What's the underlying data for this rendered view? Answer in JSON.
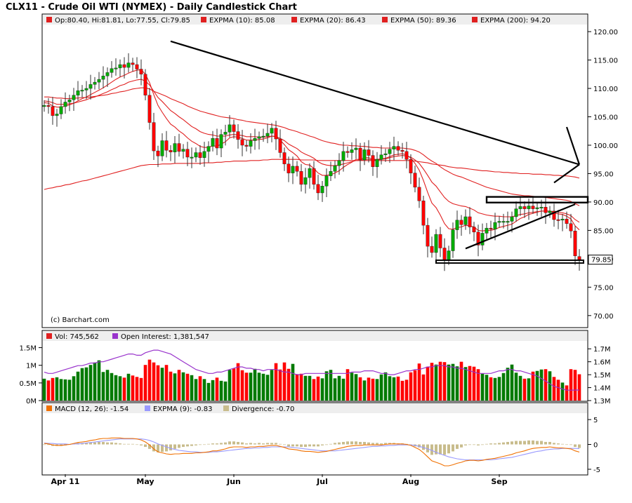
{
  "title": "CLX11 - Crude Oil WTI (NYMEX) - Daily Candlestick Chart",
  "colors": {
    "up": "#00aa00",
    "down": "#ff0000",
    "ema": "#e02020",
    "oi": "#9933cc",
    "macd": "#f07000",
    "signal": "#9999ff",
    "divergence": "#c8bc8c"
  },
  "price_legend": {
    "ohlc": "Op:80.40, Hi:81.81, Lo:77.55, Cl:79.85",
    "ema10": "EXPMA (10): 85.08",
    "ema20": "EXPMA (20): 86.43",
    "ema50": "EXPMA (50): 89.36",
    "ema200": "EXPMA (200): 94.20"
  },
  "volume_legend": {
    "vol": "Vol: 745,562",
    "oi": "Open Interest: 1,381,547"
  },
  "macd_legend": {
    "macd": "MACD (12, 26): -1.54",
    "signal": "EXPMA (9): -0.83",
    "divergence": "Divergence: -0.70"
  },
  "watermark": "(c) Barchart.com",
  "last_price_label": "79.85",
  "chart_data": {
    "type": "candlestick",
    "price_axis": {
      "range": [
        68,
        121
      ],
      "ticks": [
        "120.00",
        "115.00",
        "110.00",
        "105.00",
        "100.00",
        "95.00",
        "90.00",
        "85.00",
        "80.00",
        "75.00",
        "70.00"
      ]
    },
    "volume_axis": {
      "left_range": [
        0,
        1650000
      ],
      "left_ticks": [
        "1.5M",
        "1M",
        "0.5M",
        "0M"
      ],
      "right_range": [
        1300000,
        1750000
      ],
      "right_ticks": [
        "1.7M",
        "1.6M",
        "1.5M",
        "1.4M",
        "1.3M"
      ]
    },
    "macd_axis": {
      "range": [
        -6,
        6
      ],
      "ticks": [
        "5",
        "0",
        "-5"
      ]
    },
    "x_labels": [
      {
        "label": "Apr 11",
        "bar": 5
      },
      {
        "label": "May",
        "bar": 24
      },
      {
        "label": "Jun",
        "bar": 45
      },
      {
        "label": "Jul",
        "bar": 66
      },
      {
        "label": "Aug",
        "bar": 87
      },
      {
        "label": "Sep",
        "bar": 108
      }
    ],
    "bar_count": 128,
    "closes": [
      107.0,
      106.8,
      105.2,
      105.5,
      106.8,
      107.6,
      108.0,
      108.8,
      109.6,
      109.7,
      110.0,
      110.7,
      111.1,
      111.6,
      112.2,
      112.8,
      113.5,
      113.6,
      114.2,
      113.7,
      114.5,
      114.2,
      113.4,
      112.5,
      108.8,
      104.0,
      99.0,
      98.1,
      100.8,
      99.1,
      98.8,
      100.3,
      98.9,
      99.3,
      97.9,
      97.9,
      98.7,
      97.8,
      98.9,
      99.8,
      101.2,
      99.5,
      101.9,
      102.3,
      103.6,
      102.4,
      101.0,
      100.0,
      99.8,
      100.8,
      101.2,
      101.5,
      101.6,
      102.1,
      103.0,
      101.1,
      98.7,
      96.7,
      95.1,
      96.3,
      95.4,
      93.1,
      94.3,
      95.9,
      93.1,
      91.6,
      92.8,
      94.6,
      95.4,
      96.4,
      97.3,
      98.9,
      98.7,
      99.2,
      99.5,
      97.4,
      99.2,
      98.2,
      96.2,
      97.5,
      98.3,
      98.5,
      99.3,
      99.8,
      99.1,
      98.9,
      97.5,
      95.1,
      92.6,
      90.2,
      85.9,
      82.2,
      81.1,
      84.3,
      81.9,
      79.8,
      81.4,
      85.1,
      86.8,
      86.0,
      87.4,
      85.6,
      84.7,
      82.4,
      84.5,
      85.4,
      85.2,
      86.4,
      86.6,
      86.6,
      86.6,
      87.4,
      88.8,
      89.2,
      88.8,
      89.3,
      88.8,
      89.0,
      89.1,
      88.1,
      88.4,
      86.9,
      86.8,
      87.0,
      86.2,
      84.9,
      80.5,
      79.85
    ],
    "opens": [
      106.8,
      107.0,
      106.8,
      105.2,
      105.5,
      106.8,
      107.6,
      108.0,
      108.8,
      109.6,
      109.7,
      110.0,
      110.7,
      111.1,
      111.6,
      112.2,
      112.8,
      113.5,
      113.6,
      114.2,
      113.7,
      114.5,
      114.2,
      113.4,
      112.5,
      108.8,
      104.0,
      99.0,
      98.1,
      100.8,
      99.1,
      98.8,
      100.3,
      98.9,
      99.3,
      97.9,
      97.9,
      98.7,
      97.8,
      98.9,
      99.8,
      101.2,
      99.5,
      101.9,
      102.3,
      103.6,
      102.4,
      101.0,
      100.0,
      99.8,
      100.8,
      101.2,
      101.5,
      101.6,
      102.1,
      103.0,
      101.1,
      98.7,
      96.7,
      95.1,
      96.3,
      95.4,
      93.1,
      94.3,
      95.9,
      93.1,
      91.6,
      92.8,
      94.6,
      95.4,
      96.4,
      97.3,
      98.9,
      98.7,
      99.2,
      99.5,
      97.4,
      99.2,
      98.2,
      96.2,
      97.5,
      98.3,
      98.5,
      99.3,
      99.8,
      99.1,
      98.9,
      97.5,
      95.1,
      92.6,
      90.2,
      85.9,
      82.2,
      81.1,
      84.3,
      81.9,
      79.8,
      81.4,
      85.1,
      86.8,
      86.0,
      87.4,
      85.6,
      84.7,
      82.4,
      84.5,
      85.4,
      85.2,
      86.4,
      86.6,
      86.6,
      86.6,
      87.4,
      88.8,
      89.2,
      88.8,
      89.3,
      88.8,
      89.0,
      89.1,
      88.1,
      88.4,
      86.9,
      86.8,
      87.0,
      86.2,
      84.9,
      80.4
    ],
    "ema10": [
      107.5,
      107.4,
      106.9,
      106.7,
      106.7,
      106.9,
      107.1,
      107.4,
      107.8,
      108.2,
      108.5,
      108.9,
      109.3,
      109.7,
      110.1,
      110.6,
      111.1,
      111.6,
      112.0,
      112.3,
      112.7,
      113.0,
      113.2,
      113.3,
      112.5,
      111.0,
      108.9,
      107.0,
      105.8,
      104.7,
      103.7,
      103.2,
      102.5,
      102.0,
      101.3,
      100.7,
      100.3,
      99.8,
      99.6,
      99.6,
      99.9,
      99.8,
      100.2,
      100.6,
      101.3,
      101.5,
      101.4,
      101.2,
      100.9,
      100.9,
      100.9,
      101.0,
      101.1,
      101.3,
      101.6,
      101.5,
      100.9,
      100.1,
      99.2,
      98.7,
      98.1,
      97.1,
      96.6,
      96.5,
      95.9,
      95.1,
      94.7,
      94.7,
      94.8,
      95.1,
      95.5,
      96.1,
      96.6,
      97.0,
      97.5,
      97.5,
      97.8,
      97.8,
      97.5,
      97.5,
      97.6,
      97.7,
      98.0,
      98.3,
      98.4,
      98.5,
      98.3,
      97.7,
      96.8,
      95.6,
      93.8,
      91.7,
      89.8,
      89.0,
      87.7,
      86.2,
      85.3,
      85.2,
      85.5,
      85.6,
      85.9,
      85.8,
      85.6,
      85.0,
      84.9,
      85.0,
      85.0,
      85.2,
      85.5,
      85.7,
      85.9,
      86.1,
      86.6,
      87.1,
      87.4,
      87.8,
      88.0,
      88.2,
      88.4,
      88.4,
      88.4,
      88.1,
      87.9,
      87.8,
      87.5,
      87.0,
      85.8,
      85.08
    ],
    "ema20": [
      107.8,
      107.7,
      107.5,
      107.2,
      107.2,
      107.2,
      107.3,
      107.4,
      107.6,
      107.8,
      108.0,
      108.3,
      108.5,
      108.8,
      109.1,
      109.4,
      109.8,
      110.1,
      110.5,
      110.7,
      111.1,
      111.3,
      111.5,
      111.6,
      111.3,
      110.6,
      109.5,
      108.4,
      107.7,
      106.9,
      106.1,
      105.6,
      105.0,
      104.5,
      103.9,
      103.3,
      102.9,
      102.4,
      102.1,
      101.9,
      101.8,
      101.6,
      101.6,
      101.6,
      101.8,
      101.9,
      101.8,
      101.7,
      101.5,
      101.5,
      101.5,
      101.4,
      101.4,
      101.5,
      101.6,
      101.5,
      101.2,
      100.8,
      100.2,
      99.8,
      99.4,
      98.8,
      98.4,
      98.1,
      97.7,
      97.1,
      96.7,
      96.5,
      96.4,
      96.4,
      96.5,
      96.7,
      96.9,
      97.1,
      97.3,
      97.3,
      97.5,
      97.5,
      97.4,
      97.4,
      97.5,
      97.6,
      97.8,
      98.0,
      98.1,
      98.2,
      98.1,
      97.9,
      97.4,
      96.8,
      95.8,
      94.7,
      93.5,
      92.8,
      91.8,
      90.8,
      90.1,
      89.7,
      89.5,
      89.3,
      89.2,
      88.9,
      88.6,
      88.1,
      87.9,
      87.7,
      87.6,
      87.5,
      87.5,
      87.4,
      87.4,
      87.4,
      87.6,
      87.8,
      87.9,
      88.1,
      88.2,
      88.3,
      88.4,
      88.4,
      88.4,
      88.3,
      88.2,
      88.1,
      87.9,
      87.6,
      86.9,
      86.43
    ],
    "ema50": [
      108.5,
      108.5,
      108.4,
      108.3,
      108.3,
      108.2,
      108.2,
      108.3,
      108.3,
      108.4,
      108.4,
      108.5,
      108.6,
      108.7,
      108.8,
      108.9,
      109.1,
      109.2,
      109.4,
      109.5,
      109.7,
      109.9,
      110.0,
      110.1,
      110.1,
      109.9,
      109.5,
      109.2,
      108.9,
      108.6,
      108.2,
      107.9,
      107.6,
      107.3,
      106.9,
      106.6,
      106.3,
      106.0,
      105.8,
      105.6,
      105.4,
      105.2,
      105.0,
      104.9,
      104.8,
      104.7,
      104.5,
      104.4,
      104.2,
      104.1,
      104.0,
      103.9,
      103.8,
      103.7,
      103.6,
      103.5,
      103.3,
      103.1,
      102.8,
      102.6,
      102.4,
      102.1,
      101.9,
      101.6,
      101.4,
      101.1,
      100.8,
      100.6,
      100.4,
      100.3,
      100.1,
      100.0,
      100.0,
      99.9,
      99.9,
      99.8,
      99.8,
      99.7,
      99.6,
      99.6,
      99.5,
      99.5,
      99.5,
      99.5,
      99.5,
      99.5,
      99.4,
      99.3,
      99.1,
      98.8,
      98.3,
      97.7,
      97.2,
      96.8,
      96.2,
      95.7,
      95.3,
      94.9,
      94.6,
      94.4,
      94.1,
      93.8,
      93.5,
      93.2,
      92.9,
      92.6,
      92.4,
      92.2,
      92.0,
      91.8,
      91.6,
      91.4,
      91.3,
      91.2,
      91.1,
      91.1,
      91.0,
      90.9,
      90.9,
      90.8,
      90.7,
      90.6,
      90.5,
      90.4,
      90.3,
      90.1,
      89.7,
      89.36
    ],
    "ema200": [
      92.2,
      92.4,
      92.5,
      92.7,
      92.8,
      93.0,
      93.1,
      93.3,
      93.5,
      93.7,
      93.8,
      94.0,
      94.2,
      94.4,
      94.6,
      94.8,
      95.0,
      95.2,
      95.4,
      95.6,
      95.8,
      96.0,
      96.2,
      96.4,
      96.5,
      96.6,
      96.6,
      96.6,
      96.7,
      96.7,
      96.7,
      96.8,
      96.8,
      96.8,
      96.8,
      96.8,
      96.8,
      96.8,
      96.9,
      96.9,
      96.9,
      97.0,
      97.0,
      97.1,
      97.1,
      97.2,
      97.2,
      97.2,
      97.2,
      97.3,
      97.3,
      97.3,
      97.4,
      97.4,
      97.5,
      97.5,
      97.5,
      97.5,
      97.5,
      97.5,
      97.5,
      97.4,
      97.4,
      97.4,
      97.4,
      97.3,
      97.3,
      97.3,
      97.3,
      97.3,
      97.3,
      97.3,
      97.3,
      97.3,
      97.3,
      97.3,
      97.3,
      97.3,
      97.3,
      97.3,
      97.3,
      97.3,
      97.3,
      97.3,
      97.3,
      97.3,
      97.3,
      97.3,
      97.2,
      97.1,
      97.0,
      96.9,
      96.7,
      96.6,
      96.5,
      96.4,
      96.2,
      96.1,
      96.0,
      96.0,
      95.9,
      95.8,
      95.7,
      95.6,
      95.5,
      95.5,
      95.4,
      95.3,
      95.3,
      95.2,
      95.2,
      95.1,
      95.1,
      95.0,
      95.0,
      95.0,
      94.9,
      94.9,
      94.9,
      94.8,
      94.8,
      94.7,
      94.7,
      94.6,
      94.6,
      94.5,
      94.4,
      94.2
    ],
    "volumes": [
      620000,
      570000,
      640000,
      660000,
      610000,
      600000,
      590000,
      690000,
      820000,
      920000,
      940000,
      1010000,
      1080000,
      1140000,
      810000,
      870000,
      780000,
      720000,
      690000,
      650000,
      760000,
      710000,
      670000,
      640000,
      1010000,
      1160000,
      1080000,
      1000000,
      930000,
      1010000,
      820000,
      770000,
      870000,
      800000,
      760000,
      720000,
      610000,
      690000,
      610000,
      500000,
      580000,
      650000,
      560000,
      540000,
      870000,
      910000,
      1060000,
      860000,
      790000,
      790000,
      900000,
      790000,
      760000,
      730000,
      870000,
      1060000,
      880000,
      1080000,
      900000,
      1040000,
      750000,
      760000,
      700000,
      700000,
      610000,
      680000,
      630000,
      830000,
      870000,
      630000,
      700000,
      620000,
      890000,
      790000,
      750000,
      660000,
      570000,
      650000,
      620000,
      610000,
      740000,
      800000,
      690000,
      660000,
      680000,
      560000,
      590000,
      800000,
      860000,
      1050000,
      740000,
      960000,
      1070000,
      1020000,
      1100000,
      1090000,
      1020000,
      1040000,
      970000,
      1100000,
      950000,
      980000,
      960000,
      890000,
      760000,
      730000,
      660000,
      640000,
      670000,
      780000,
      930000,
      1020000,
      790000,
      700000,
      620000,
      630000,
      820000,
      840000,
      880000,
      890000,
      830000,
      670000,
      590000,
      510000,
      430000,
      890000,
      870000,
      745562
    ],
    "open_interest": [
      1520000,
      1510000,
      1510000,
      1520000,
      1530000,
      1540000,
      1550000,
      1560000,
      1570000,
      1570000,
      1580000,
      1590000,
      1590000,
      1600000,
      1600000,
      1610000,
      1620000,
      1630000,
      1640000,
      1650000,
      1660000,
      1660000,
      1650000,
      1650000,
      1670000,
      1680000,
      1690000,
      1690000,
      1680000,
      1670000,
      1660000,
      1640000,
      1620000,
      1600000,
      1580000,
      1560000,
      1540000,
      1530000,
      1520000,
      1510000,
      1510000,
      1520000,
      1520000,
      1530000,
      1540000,
      1550000,
      1560000,
      1560000,
      1550000,
      1550000,
      1540000,
      1540000,
      1530000,
      1540000,
      1540000,
      1540000,
      1530000,
      1520000,
      1520000,
      1510000,
      1500000,
      1500000,
      1510000,
      1510000,
      1510000,
      1510000,
      1510000,
      1510000,
      1510000,
      1510000,
      1510000,
      1510000,
      1510000,
      1520000,
      1520000,
      1520000,
      1530000,
      1530000,
      1530000,
      1520000,
      1510000,
      1510000,
      1500000,
      1500000,
      1510000,
      1520000,
      1530000,
      1530000,
      1540000,
      1540000,
      1550000,
      1560000,
      1560000,
      1570000,
      1570000,
      1570000,
      1560000,
      1560000,
      1550000,
      1550000,
      1540000,
      1530000,
      1520000,
      1510000,
      1510000,
      1510000,
      1510000,
      1520000,
      1530000,
      1530000,
      1540000,
      1540000,
      1530000,
      1530000,
      1520000,
      1510000,
      1500000,
      1490000,
      1470000,
      1450000,
      1430000,
      1410000,
      1400000,
      1390000,
      1380000,
      1380000,
      1381547,
      1381547
    ],
    "macd": [
      0.2,
      0.1,
      -0.1,
      -0.2,
      -0.2,
      -0.1,
      0.0,
      0.2,
      0.4,
      0.5,
      0.6,
      0.8,
      0.9,
      1.1,
      1.2,
      1.2,
      1.3,
      1.3,
      1.3,
      1.2,
      1.2,
      1.2,
      1.1,
      0.9,
      0.5,
      -0.1,
      -0.9,
      -1.5,
      -1.7,
      -1.9,
      -2.0,
      -1.9,
      -1.9,
      -1.8,
      -1.8,
      -1.8,
      -1.7,
      -1.7,
      -1.6,
      -1.5,
      -1.3,
      -1.3,
      -1.1,
      -0.9,
      -0.6,
      -0.5,
      -0.5,
      -0.5,
      -0.6,
      -0.5,
      -0.5,
      -0.4,
      -0.4,
      -0.3,
      -0.2,
      -0.2,
      -0.4,
      -0.6,
      -0.9,
      -1.0,
      -1.1,
      -1.3,
      -1.4,
      -1.4,
      -1.5,
      -1.6,
      -1.5,
      -1.4,
      -1.2,
      -1.0,
      -0.8,
      -0.6,
      -0.4,
      -0.3,
      -0.2,
      -0.2,
      -0.1,
      -0.1,
      -0.1,
      -0.1,
      -0.1,
      0.0,
      0.1,
      0.1,
      0.1,
      0.1,
      0.0,
      -0.2,
      -0.6,
      -1.0,
      -1.7,
      -2.5,
      -3.3,
      -3.6,
      -3.9,
      -4.3,
      -4.3,
      -4.1,
      -3.8,
      -3.6,
      -3.3,
      -3.2,
      -3.2,
      -3.3,
      -3.2,
      -3.0,
      -2.9,
      -2.8,
      -2.6,
      -2.4,
      -2.2,
      -2.0,
      -1.7,
      -1.5,
      -1.3,
      -1.0,
      -0.8,
      -0.7,
      -0.6,
      -0.6,
      -0.5,
      -0.6,
      -0.7,
      -0.7,
      -0.8,
      -0.9,
      -1.3,
      -1.54
    ],
    "signal": [
      0.3,
      0.2,
      0.2,
      0.1,
      0.1,
      0.1,
      0.0,
      0.1,
      0.1,
      0.2,
      0.3,
      0.4,
      0.5,
      0.6,
      0.7,
      0.8,
      0.9,
      1.0,
      1.1,
      1.1,
      1.1,
      1.1,
      1.1,
      1.1,
      1.0,
      0.8,
      0.5,
      0.1,
      -0.2,
      -0.5,
      -0.8,
      -1.0,
      -1.2,
      -1.3,
      -1.4,
      -1.5,
      -1.5,
      -1.6,
      -1.6,
      -1.6,
      -1.5,
      -1.5,
      -1.4,
      -1.3,
      -1.2,
      -1.1,
      -1.0,
      -0.9,
      -0.8,
      -0.8,
      -0.7,
      -0.7,
      -0.6,
      -0.6,
      -0.5,
      -0.5,
      -0.5,
      -0.5,
      -0.5,
      -0.6,
      -0.7,
      -0.8,
      -0.9,
      -1.0,
      -1.1,
      -1.2,
      -1.3,
      -1.3,
      -1.3,
      -1.3,
      -1.2,
      -1.1,
      -1.0,
      -0.9,
      -0.8,
      -0.7,
      -0.6,
      -0.5,
      -0.4,
      -0.4,
      -0.3,
      -0.3,
      -0.2,
      -0.2,
      -0.1,
      -0.1,
      -0.1,
      -0.1,
      -0.2,
      -0.4,
      -0.6,
      -0.9,
      -1.2,
      -1.6,
      -1.9,
      -2.2,
      -2.5,
      -2.7,
      -2.9,
      -3.0,
      -3.1,
      -3.1,
      -3.1,
      -3.1,
      -3.1,
      -3.1,
      -3.1,
      -3.0,
      -2.9,
      -2.8,
      -2.7,
      -2.6,
      -2.4,
      -2.2,
      -2.0,
      -1.8,
      -1.6,
      -1.4,
      -1.3,
      -1.1,
      -1.0,
      -0.9,
      -0.9,
      -0.8,
      -0.8,
      -0.8,
      -0.8,
      -0.83
    ]
  },
  "annotations": {
    "downtrend_line": {
      "from": {
        "bar": 30,
        "price": 118.3
      },
      "to": {
        "bar": 127,
        "price": 96.6
      }
    },
    "arrow_right": {
      "from": {
        "bar": 124,
        "price": 103.2
      },
      "to": {
        "bar": 127,
        "price": 96.6
      }
    },
    "arrow_left": {
      "from": {
        "bar": 127,
        "price": 96.6
      },
      "to": {
        "bar": 121,
        "price": 93.4
      }
    },
    "support_line": {
      "from": {
        "bar": 93,
        "price": 79.5
      },
      "to": {
        "bar": 128,
        "price": 79.5
      }
    },
    "rising_trend_line": {
      "from": {
        "bar": 100,
        "price": 81.8
      },
      "to": {
        "bar": 126,
        "price": 89.6
      }
    },
    "resistance_box": {
      "from": {
        "bar": 105,
        "price": 90.9
      },
      "to": {
        "bar": 129,
        "price": 89.9
      }
    }
  }
}
